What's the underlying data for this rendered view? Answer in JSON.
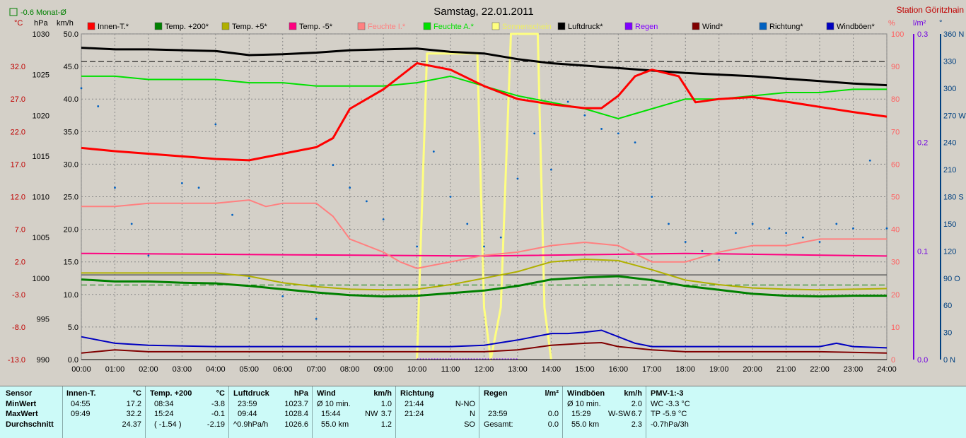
{
  "header": {
    "title": "Samstag, 22.01.2011",
    "station": "Station Göritzhain",
    "month_avg": "-0.6 Monat-Ø"
  },
  "axes": {
    "celsius_unit": "°C",
    "hpa_unit": "hPa",
    "kmh_unit": "km/h",
    "pct_unit": "%",
    "rain_unit": "l/m²",
    "deg_unit": "°",
    "celsius_ticks": [
      "32.0",
      "27.0",
      "22.0",
      "17.0",
      "12.0",
      "7.0",
      "2.0",
      "-3.0",
      "-8.0",
      "-13.0"
    ],
    "hpa_ticks": [
      "1030",
      "1025",
      "1020",
      "1015",
      "1010",
      "1005",
      "1000",
      "995",
      "990"
    ],
    "kmh_ticks": [
      "50.0",
      "45.0",
      "40.0",
      "35.0",
      "30.0",
      "25.0",
      "20.0",
      "15.0",
      "10.0",
      "5.0",
      "0.0"
    ],
    "pct_ticks": [
      "100",
      "90",
      "80",
      "70",
      "60",
      "50",
      "40",
      "30",
      "20",
      "10",
      "0"
    ],
    "rain_ticks": [
      "0.3",
      "0.2",
      "0.1",
      "0.0"
    ],
    "deg_ticks": [
      "360 N",
      "330",
      "300",
      "270 W",
      "240",
      "210",
      "180 S",
      "150",
      "120",
      "90 O",
      "60",
      "30",
      "0 N"
    ],
    "time_ticks": [
      "00:00",
      "01:00",
      "02:00",
      "03:00",
      "04:00",
      "05:00",
      "06:00",
      "07:00",
      "08:00",
      "09:00",
      "10:00",
      "11:00",
      "12:00",
      "13:00",
      "14:00",
      "15:00",
      "16:00",
      "17:00",
      "18:00",
      "19:00",
      "20:00",
      "21:00",
      "22:00",
      "23:00",
      "24:00"
    ]
  },
  "legend": [
    {
      "label": "Innen-T.*",
      "color": "#ff0000"
    },
    {
      "label": "Temp. +200*",
      "color": "#008000"
    },
    {
      "label": "Temp. +5*",
      "color": "#b0b000"
    },
    {
      "label": "Temp. -5*",
      "color": "#ff0080"
    },
    {
      "label": "Feuchte I.*",
      "color": "#ff8080"
    },
    {
      "label": "Feuchte A.*",
      "color": "#00e000"
    },
    {
      "label": "Sonnenschein",
      "color": "#ffff80"
    },
    {
      "label": "Luftdruck*",
      "color": "#000000"
    },
    {
      "label": "Regen",
      "color": "#8000ff"
    },
    {
      "label": "Wind*",
      "color": "#800000"
    },
    {
      "label": "Richtung*",
      "color": "#0060c0"
    },
    {
      "label": "Windböen*",
      "color": "#0000c0"
    }
  ],
  "chart_data": {
    "type": "line",
    "x_range": [
      "00:00",
      "24:00"
    ],
    "grid": true,
    "series": [
      {
        "name": "Innen-T.*",
        "axis": "kmh",
        "color": "#ff0000",
        "x": [
          0,
          1,
          2,
          3,
          4,
          5,
          6,
          7,
          7.5,
          8,
          9,
          10,
          11,
          12,
          13,
          14,
          15,
          15.5,
          16,
          16.5,
          17,
          17.8,
          18.3,
          19,
          20,
          21,
          22,
          23,
          24
        ],
        "values": [
          32.5,
          32.0,
          31.6,
          31.2,
          30.8,
          30.6,
          31.6,
          32.6,
          34,
          38.5,
          41.5,
          45.5,
          44.5,
          42,
          40,
          39.2,
          38.6,
          38.6,
          40.5,
          43.5,
          44.5,
          43.5,
          39.5,
          40,
          40.3,
          39.6,
          38.8,
          38,
          37.3
        ]
      },
      {
        "name": "Temp. +200*",
        "axis": "kmh",
        "color": "#008000",
        "x": [
          0,
          1,
          2,
          3,
          4,
          5,
          6,
          7,
          8,
          9,
          10,
          11,
          12,
          13,
          14,
          15,
          16,
          17,
          18,
          19,
          20,
          21,
          22,
          23,
          24
        ],
        "values": [
          12.3,
          12.0,
          12.0,
          11.8,
          11.7,
          11.3,
          10.8,
          10.3,
          9.9,
          9.7,
          9.8,
          10.2,
          10.6,
          11.3,
          12.3,
          12.6,
          12.8,
          12.2,
          11.3,
          10.7,
          10.1,
          9.8,
          9.7,
          9.8,
          9.8
        ]
      },
      {
        "name": "Temp. +5*",
        "axis": "kmh",
        "color": "#b0b000",
        "x": [
          0,
          1,
          2,
          3,
          4,
          5,
          6,
          7,
          8,
          9,
          10,
          11,
          12,
          13,
          14,
          15,
          16,
          17,
          18,
          19,
          20,
          21,
          22,
          23,
          24
        ],
        "values": [
          13.3,
          13.3,
          13.3,
          13.3,
          13.3,
          12.8,
          11.8,
          11.2,
          10.8,
          10.7,
          10.8,
          11.5,
          12.5,
          13.5,
          15,
          15.4,
          15.2,
          13.8,
          12.2,
          11.5,
          11.0,
          10.8,
          10.7,
          10.8,
          10.9
        ]
      },
      {
        "name": "Temp. -5*",
        "axis": "kmh",
        "color": "#ff0080",
        "x": [
          0,
          6,
          12,
          18,
          24
        ],
        "values": [
          16.3,
          16.1,
          15.9,
          16.3,
          15.9
        ]
      },
      {
        "name": "Feuchte I.*",
        "axis": "pct",
        "color": "#ff8080",
        "x": [
          0,
          1,
          2,
          3,
          4,
          5,
          5.5,
          6,
          7,
          7.5,
          8,
          9,
          9.5,
          10,
          11,
          12,
          13,
          14,
          15,
          16,
          17,
          18,
          19,
          20,
          21,
          22,
          23,
          24
        ],
        "values": [
          47,
          47,
          48,
          48,
          48,
          49,
          47,
          48,
          48,
          44,
          37,
          33,
          30,
          28,
          30,
          32,
          33,
          35,
          36,
          35,
          30,
          30,
          33,
          35,
          35,
          37,
          37,
          37
        ]
      },
      {
        "name": "Feuchte A.*",
        "axis": "pct",
        "color": "#00e000",
        "x": [
          0,
          1,
          2,
          3,
          4,
          5,
          6,
          7,
          8,
          9,
          10,
          11,
          12,
          13,
          14,
          15,
          16,
          17,
          18,
          19,
          20,
          21,
          22,
          23,
          24
        ],
        "values": [
          87,
          87,
          86,
          86,
          86,
          85,
          85,
          84,
          84,
          84,
          85,
          87,
          84,
          81,
          79,
          77,
          74,
          77,
          80,
          80,
          81,
          82,
          82,
          83,
          83
        ]
      },
      {
        "name": "Luftdruck*",
        "axis": "hpa",
        "color": "#000000",
        "x": [
          0,
          1,
          2,
          3,
          4,
          5,
          6,
          7,
          8,
          9,
          10,
          11,
          12,
          13,
          14,
          15,
          16,
          17,
          18,
          19,
          20,
          21,
          22,
          23,
          24
        ],
        "values": [
          1028.3,
          1028.1,
          1028.1,
          1028.0,
          1027.9,
          1027.4,
          1027.5,
          1027.7,
          1028.0,
          1028.1,
          1028.2,
          1027.8,
          1027.6,
          1026.9,
          1026.4,
          1026.1,
          1025.8,
          1025.5,
          1025.2,
          1025.0,
          1024.8,
          1024.5,
          1024.2,
          1023.9,
          1023.7
        ]
      },
      {
        "name": "Wind*",
        "axis": "kmh",
        "color": "#800000",
        "x": [
          0,
          1,
          2,
          6,
          10,
          12,
          13,
          14,
          15,
          15.5,
          16,
          17,
          18,
          20,
          22,
          24
        ],
        "values": [
          1.0,
          1.5,
          1.2,
          1.2,
          1.2,
          1.2,
          1.5,
          2.2,
          2.5,
          2.6,
          2.0,
          1.5,
          1.2,
          1.2,
          1.2,
          1.0
        ]
      },
      {
        "name": "Windböen*",
        "axis": "kmh",
        "color": "#0000c0",
        "x": [
          0,
          0.5,
          1,
          2,
          4,
          6,
          8,
          10,
          11,
          12,
          13,
          13.5,
          14,
          14.5,
          15,
          15.5,
          16,
          16.5,
          17,
          18,
          20,
          22,
          22.5,
          23,
          24
        ],
        "values": [
          3.5,
          3.0,
          2.5,
          2.2,
          2.0,
          2.0,
          2.0,
          2.0,
          2.0,
          2.2,
          3.0,
          3.5,
          4.0,
          4.0,
          4.2,
          4.5,
          3.5,
          2.5,
          2.0,
          2.0,
          2.0,
          2.0,
          2.5,
          2.0,
          1.8
        ]
      },
      {
        "name": "Sonnenschein",
        "axis": "kmh",
        "color": "#ffff80",
        "x": [
          10,
          10.3,
          10.6,
          11.8,
          12.0,
          12.2,
          12.5,
          12.8,
          13.6,
          13.8,
          14.0
        ],
        "values": [
          0,
          47,
          47,
          47,
          8,
          0,
          8,
          50,
          50,
          8,
          0
        ]
      },
      {
        "name": "Richtung*",
        "axis": "deg",
        "color": "#0060c0",
        "x": [
          0,
          0.5,
          1,
          1.5,
          2,
          3,
          3.5,
          4,
          4.5,
          5,
          6,
          7,
          7.5,
          8,
          8.5,
          9,
          10,
          10.5,
          11,
          11.5,
          12,
          12.5,
          13,
          13.5,
          14,
          14.5,
          15,
          15.5,
          16,
          16.5,
          17,
          17.5,
          18,
          18.5,
          19,
          19.5,
          20,
          20.5,
          21,
          21.5,
          22,
          22.5,
          23,
          23.5,
          24
        ],
        "values": [
          300,
          280,
          190,
          150,
          115,
          195,
          190,
          260,
          160,
          90,
          70,
          45,
          215,
          190,
          175,
          155,
          125,
          230,
          180,
          150,
          125,
          135,
          200,
          250,
          210,
          285,
          270,
          255,
          250,
          240,
          180,
          150,
          130,
          120,
          110,
          140,
          150,
          145,
          140,
          135,
          130,
          150,
          145,
          220,
          145
        ]
      }
    ],
    "ref_lines": {
      "pressure_hpa": 1026.6,
      "temp_c": -1.54
    }
  },
  "stats": {
    "sensor": {
      "title": "Sensor",
      "rows": [
        "MinWert",
        "MaxWert",
        "Durchschnitt"
      ]
    },
    "innen": {
      "title": "Innen-T.",
      "unit": "°C",
      "rows": [
        [
          "04:55",
          "17.2"
        ],
        [
          "09:49",
          "32.2"
        ],
        [
          "",
          "24.37"
        ]
      ]
    },
    "temp200": {
      "title": "Temp. +200",
      "unit": "°C",
      "rows": [
        [
          "08:34",
          "-3.8"
        ],
        [
          "15:24",
          "-0.1"
        ],
        [
          "( -1.54 )",
          "-2.19"
        ]
      ]
    },
    "luftdruck": {
      "title": "Luftdruck",
      "unit": "hPa",
      "rows": [
        [
          "23:59",
          "1023.7"
        ],
        [
          "09:44",
          "1028.4"
        ],
        [
          "^0.9hPa/h",
          "1026.6"
        ]
      ]
    },
    "wind": {
      "title": "Wind",
      "unit": "km/h",
      "rows": [
        [
          "Ø 10 min.",
          "",
          "1.0"
        ],
        [
          "15:44",
          "NW",
          "3.7"
        ],
        [
          "55.0 km",
          "",
          "1.2"
        ]
      ]
    },
    "richtung": {
      "title": "Richtung",
      "unit": "",
      "rows": [
        [
          "21:44",
          "N-NO"
        ],
        [
          "21:24",
          "N"
        ],
        [
          "",
          "SO"
        ]
      ]
    },
    "regen": {
      "title": "Regen",
      "unit": "l/m²",
      "rows": [
        [
          "",
          ""
        ],
        [
          "23:59",
          "0.0"
        ],
        [
          "Gesamt:",
          "0.0"
        ]
      ]
    },
    "boeen": {
      "title": "Windböen",
      "unit": "km/h",
      "rows": [
        [
          "Ø 10 min.",
          "",
          "2.0"
        ],
        [
          "15:29",
          "W-SW",
          "6.7"
        ],
        [
          "55.0 km",
          "",
          "2.3"
        ]
      ]
    },
    "pmv": {
      "title": "PMV-1:-3",
      "rows": [
        "WC -3.3 °C",
        "TP -5.9 °C",
        "-0.7hPa/3h"
      ]
    }
  }
}
